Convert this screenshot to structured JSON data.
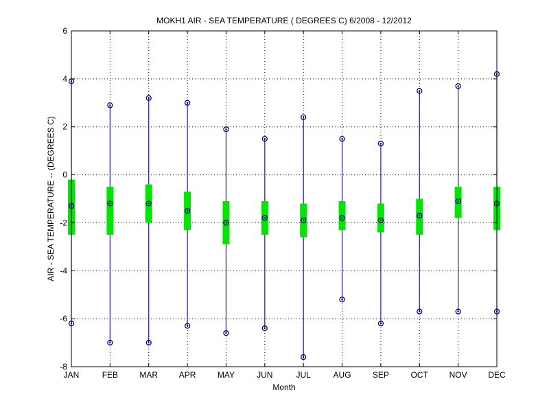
{
  "chart_data": {
    "type": "boxplot",
    "title": "MOKH1  AIR - SEA TEMPERATURE ( DEGREES C) 6/2008 - 12/2012",
    "xlabel": "Month",
    "ylabel": "AIR - SEA TEMPERATURE -- (DEGREES C)",
    "categories": [
      "JAN",
      "FEB",
      "MAR",
      "APR",
      "MAY",
      "JUN",
      "JUL",
      "AUG",
      "SEP",
      "OCT",
      "NOV",
      "DEC"
    ],
    "ylim": [
      -8,
      6
    ],
    "yticks": [
      -8,
      -6,
      -4,
      -2,
      0,
      2,
      4,
      6
    ],
    "ytick_labels": [
      "-8",
      "-6",
      "-4",
      "-2",
      "0",
      "2",
      "4",
      "6"
    ],
    "grid": true,
    "series": [
      {
        "stat": "max",
        "values": [
          3.9,
          2.9,
          3.2,
          3.0,
          1.9,
          1.5,
          2.4,
          1.5,
          1.3,
          3.5,
          3.7,
          4.2
        ]
      },
      {
        "stat": "min",
        "values": [
          -6.2,
          -7.0,
          -7.0,
          -6.3,
          -6.6,
          -6.4,
          -7.6,
          -5.2,
          -6.2,
          -5.7,
          -5.7,
          -5.7
        ]
      },
      {
        "stat": "mean",
        "values": [
          -1.3,
          -1.2,
          -1.2,
          -1.5,
          -2.0,
          -1.8,
          -1.9,
          -1.8,
          -1.9,
          -1.7,
          -1.1,
          -1.2
        ]
      },
      {
        "stat": "q_high",
        "values": [
          -0.2,
          -0.5,
          -0.4,
          -0.7,
          -1.1,
          -1.1,
          -1.2,
          -1.1,
          -1.2,
          -1.0,
          -0.5,
          -0.5
        ]
      },
      {
        "stat": "q_low",
        "values": [
          -2.5,
          -2.5,
          -2.0,
          -2.3,
          -2.9,
          -2.5,
          -2.6,
          -2.3,
          -2.4,
          -2.5,
          -1.8,
          -2.3
        ]
      }
    ],
    "colors": {
      "whisker": "#1c1ca8",
      "box": "#00e600",
      "marker": "#000080",
      "grid": "#000000",
      "axis": "#000000"
    }
  }
}
